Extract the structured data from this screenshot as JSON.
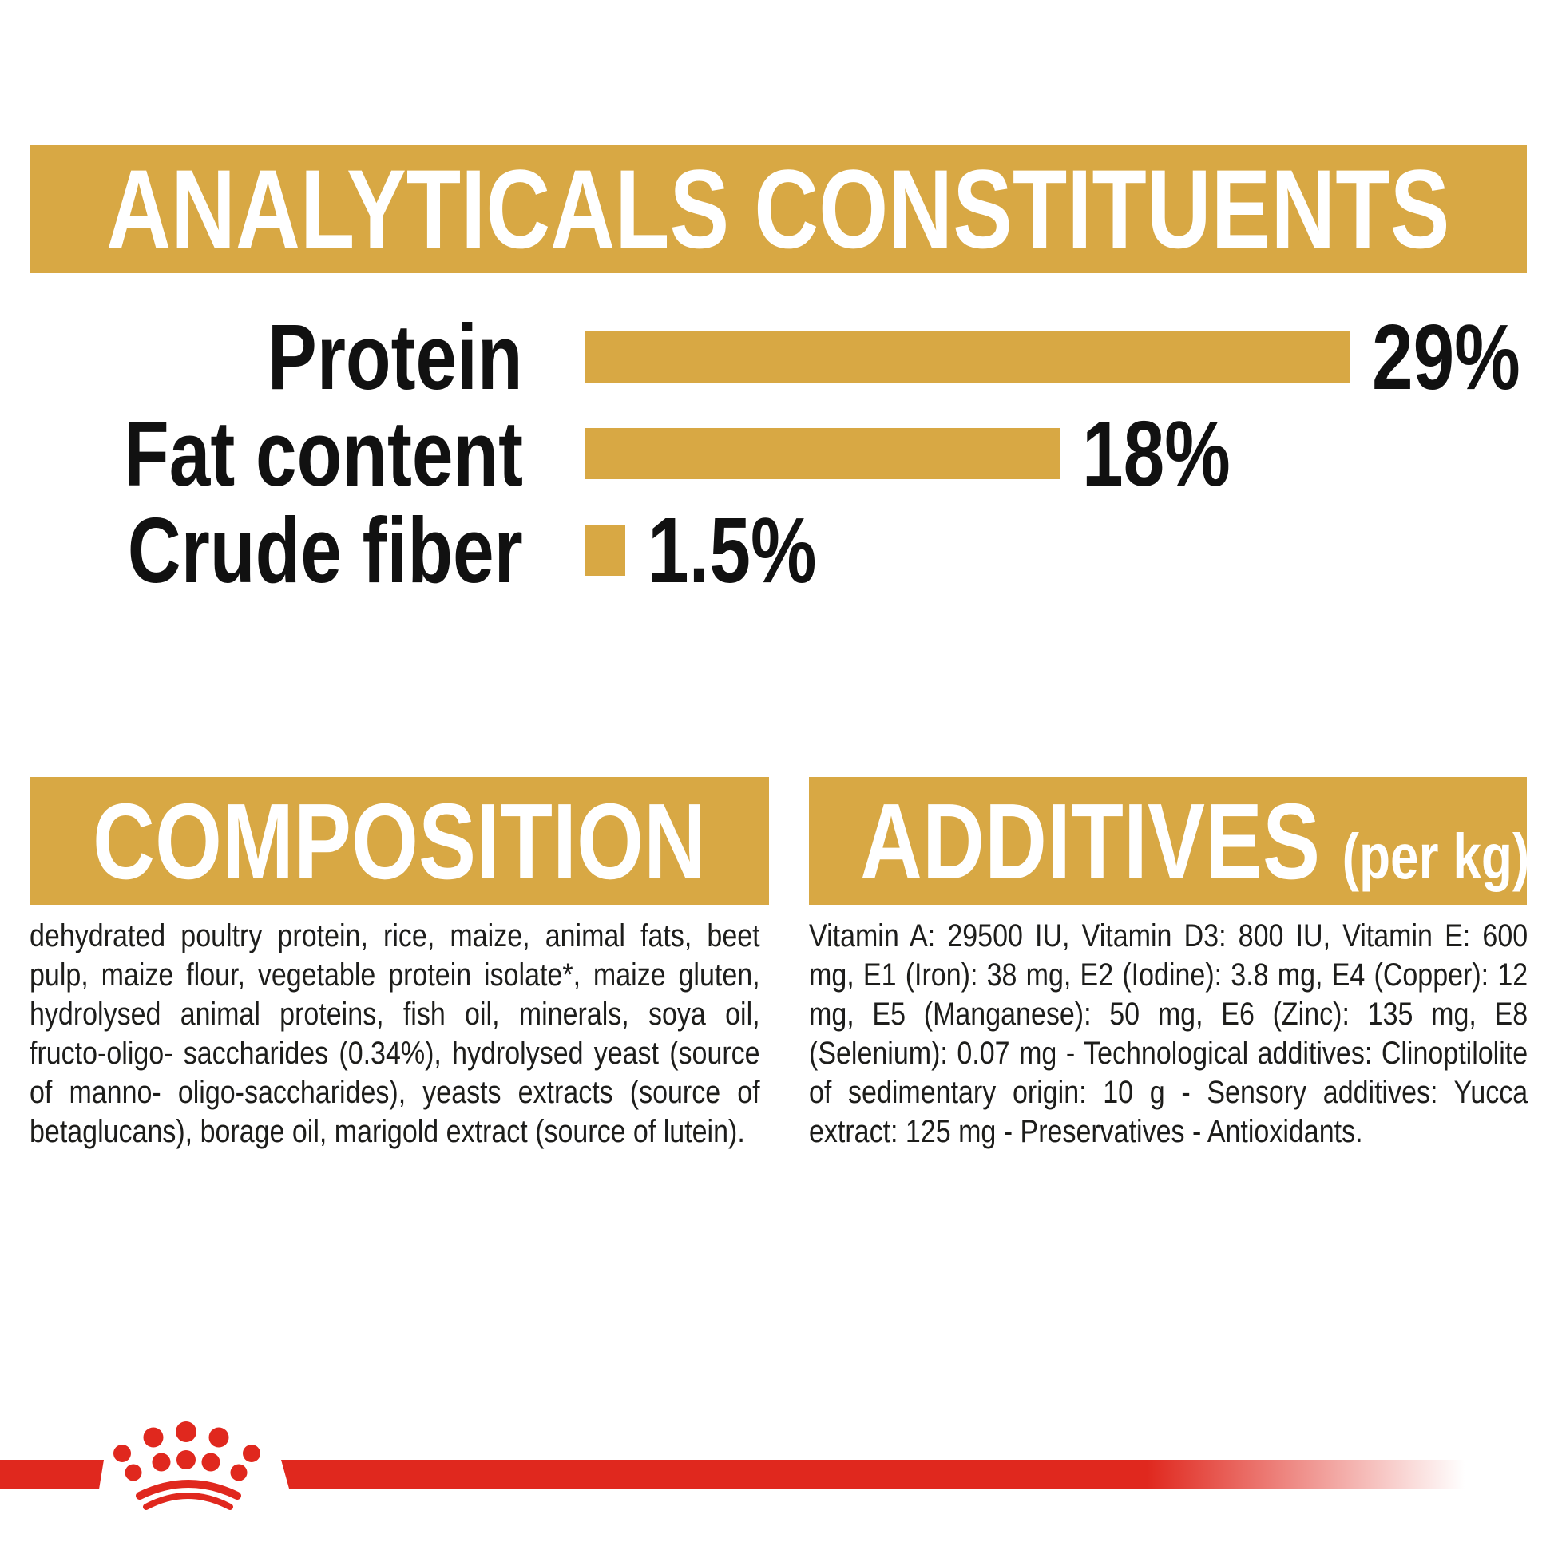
{
  "header": {
    "title": "ANALYTICALS CONSTITUENTS"
  },
  "chart_data": {
    "type": "bar",
    "orientation": "horizontal",
    "title": "ANALYTICALS CONSTITUENTS",
    "categories": [
      "Protein",
      "Fat content",
      "Crude fiber"
    ],
    "values": [
      29,
      18,
      1.5
    ],
    "value_labels": [
      "29%",
      "18%",
      "1.5%"
    ],
    "xlim": [
      0,
      29
    ],
    "grid": false,
    "bar_color": "#D8A844",
    "label_color": "#111111"
  },
  "composition": {
    "title": "COMPOSITION",
    "body": "dehydrated poultry protein, rice, maize, animal fats, beet pulp, maize flour, vegetable protein isolate*, maize gluten, hydrolysed animal proteins, fish oil, minerals, soya oil, fructo-oligo- saccharides (0.34%), hydrolysed yeast (source of manno- oligo-saccharides), yeasts extracts (source of betaglucans), borage oil, marigold extract (source of lutein)."
  },
  "additives": {
    "title": "ADDITIVES",
    "unit_label": "(per kg)",
    "body": "Vitamin A: 29500 IU, Vitamin D3: 800 IU, Vitamin E: 600 mg, E1 (Iron): 38 mg, E2 (Iodine): 3.8 mg, E4 (Copper): 12 mg, E5 (Manganese): 50 mg, E6 (Zinc): 135 mg, E8 (Selenium): 0.07 mg - Technological additives: Clinoptilolite of sedimentary origin: 10 g - Sensory additives: Yucca extract: 125 mg - Preservatives - Antioxidants."
  },
  "footer": {
    "brand_icon": "royal-canin-crown-paw-icon"
  },
  "colors": {
    "gold": "#D8A844",
    "red": "#E0281E",
    "text": "#1D1D1B",
    "white": "#FFFFFF"
  }
}
